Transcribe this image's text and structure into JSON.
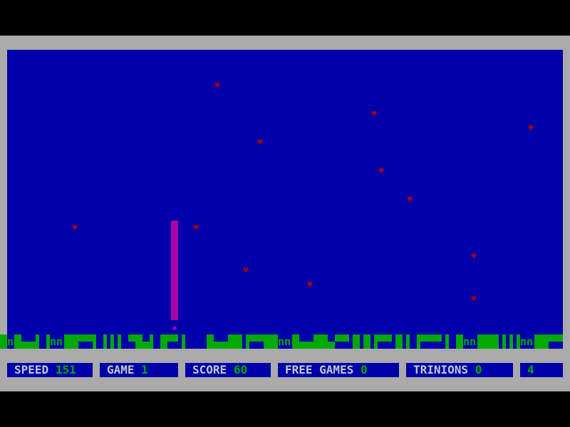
{
  "colors": {
    "background": "#0000aa",
    "frame": "#aaaaaa",
    "terrain": "#00aa00",
    "heart": "#aa0000",
    "player": "#aa00aa",
    "label": "#c8c8c8",
    "value": "#00aa00"
  },
  "status": {
    "speed": {
      "label": "SPEED",
      "value": "151"
    },
    "game": {
      "label": "GAME",
      "value": "1"
    },
    "score": {
      "label": "SCORE",
      "value": "60"
    },
    "free_games": {
      "label": "FREE GAMES",
      "value": "0"
    },
    "trinions": {
      "label": "TRINIONS",
      "value": "0"
    },
    "level": {
      "value": "4"
    }
  },
  "icons": {
    "heart": "heart-icon",
    "player": "player-ship-icon",
    "terrain_glyph": "nn"
  }
}
